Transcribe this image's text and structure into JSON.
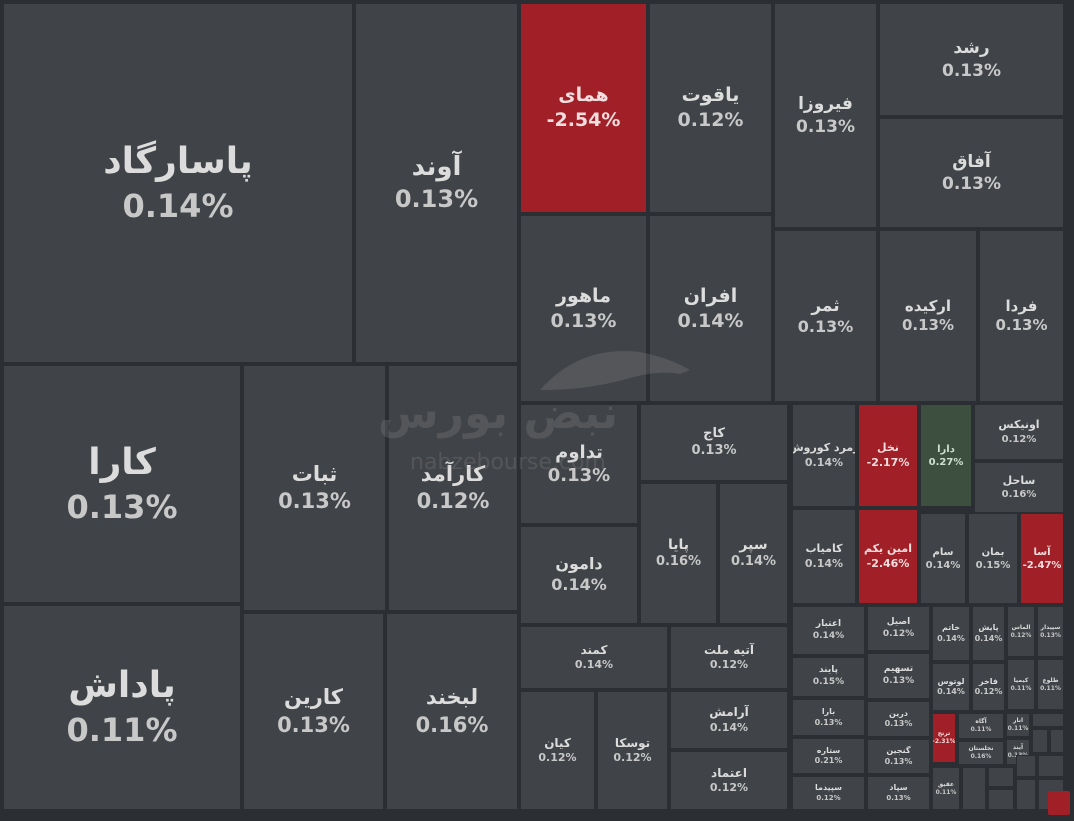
{
  "chart_data": {
    "type": "treemap",
    "tiles": [
      {
        "name": "پاسارگاد",
        "change": "0.14%",
        "direction": "up"
      },
      {
        "name": "کارا",
        "change": "0.13%",
        "direction": "up"
      },
      {
        "name": "پاداش",
        "change": "0.11%",
        "direction": "up"
      },
      {
        "name": "آوند",
        "change": "0.13%",
        "direction": "up"
      },
      {
        "name": "ثبات",
        "change": "0.13%",
        "direction": "up"
      },
      {
        "name": "کارآمد",
        "change": "0.12%",
        "direction": "up"
      },
      {
        "name": "کارین",
        "change": "0.13%",
        "direction": "up"
      },
      {
        "name": "لبخند",
        "change": "0.16%",
        "direction": "up"
      },
      {
        "name": "همای",
        "change": "-2.54%",
        "direction": "down"
      },
      {
        "name": "یاقوت",
        "change": "0.12%",
        "direction": "up"
      },
      {
        "name": "فیروزا",
        "change": "0.13%",
        "direction": "up"
      },
      {
        "name": "رشد",
        "change": "0.13%",
        "direction": "up"
      },
      {
        "name": "آفاق",
        "change": "0.13%",
        "direction": "up"
      },
      {
        "name": "ماهور",
        "change": "0.13%",
        "direction": "up"
      },
      {
        "name": "افران",
        "change": "0.14%",
        "direction": "up"
      },
      {
        "name": "ثمر",
        "change": "0.13%",
        "direction": "up"
      },
      {
        "name": "ارکیده",
        "change": "0.13%",
        "direction": "up"
      },
      {
        "name": "فردا",
        "change": "0.13%",
        "direction": "up"
      },
      {
        "name": "تداوم",
        "change": "0.13%",
        "direction": "up"
      },
      {
        "name": "دامون",
        "change": "0.14%",
        "direction": "up"
      },
      {
        "name": "کاج",
        "change": "0.13%",
        "direction": "up"
      },
      {
        "name": "پایا",
        "change": "0.16%",
        "direction": "up"
      },
      {
        "name": "سپر",
        "change": "0.14%",
        "direction": "up"
      },
      {
        "name": "زمرد کوروش",
        "change": "0.14%",
        "direction": "up"
      },
      {
        "name": "نخل",
        "change": "-2.17%",
        "direction": "down"
      },
      {
        "name": "دارا",
        "change": "0.27%",
        "direction": "up"
      },
      {
        "name": "اونیکس",
        "change": "0.12%",
        "direction": "up"
      },
      {
        "name": "ساحل",
        "change": "0.16%",
        "direction": "up"
      },
      {
        "name": "کامیاب",
        "change": "0.14%",
        "direction": "up"
      },
      {
        "name": "امین یکم",
        "change": "-2.46%",
        "direction": "down"
      },
      {
        "name": "سام",
        "change": "0.14%",
        "direction": "up"
      },
      {
        "name": "بمان",
        "change": "0.15%",
        "direction": "up"
      },
      {
        "name": "آسا",
        "change": "-2.47%",
        "direction": "down"
      },
      {
        "name": "کمند",
        "change": "0.14%",
        "direction": "up"
      },
      {
        "name": "آتیه ملت",
        "change": "0.12%",
        "direction": "up"
      },
      {
        "name": "آرامش",
        "change": "0.14%",
        "direction": "up"
      },
      {
        "name": "کیان",
        "change": "0.12%",
        "direction": "up"
      },
      {
        "name": "توسکا",
        "change": "0.12%",
        "direction": "up"
      },
      {
        "name": "اعتماد",
        "change": "0.12%",
        "direction": "up"
      },
      {
        "name": "اعتبار",
        "change": "0.14%",
        "direction": "up"
      },
      {
        "name": "اصیل",
        "change": "0.12%",
        "direction": "up"
      },
      {
        "name": "پایند",
        "change": "0.15%",
        "direction": "up"
      },
      {
        "name": "تسهیم",
        "change": "0.13%",
        "direction": "up"
      },
      {
        "name": "بارا",
        "change": "0.13%",
        "direction": "up"
      },
      {
        "name": "درین",
        "change": "0.13%",
        "direction": "up"
      },
      {
        "name": "ستاره",
        "change": "0.21%",
        "direction": "up"
      },
      {
        "name": "گنجین",
        "change": "0.13%",
        "direction": "up"
      },
      {
        "name": "سپیدما",
        "change": "0.12%",
        "direction": "up"
      },
      {
        "name": "سپاد",
        "change": "0.13%",
        "direction": "up"
      },
      {
        "name": "خاتم",
        "change": "0.14%",
        "direction": "up"
      },
      {
        "name": "پایش",
        "change": "0.14%",
        "direction": "up"
      },
      {
        "name": "الماس",
        "change": "0.12%",
        "direction": "up"
      },
      {
        "name": "سپیدار",
        "change": "0.13%",
        "direction": "up"
      },
      {
        "name": "لوتوس",
        "change": "0.14%",
        "direction": "up"
      },
      {
        "name": "فاخر",
        "change": "0.12%",
        "direction": "up"
      },
      {
        "name": "کیمیا",
        "change": "0.11%",
        "direction": "up"
      },
      {
        "name": "طلوع",
        "change": "0.11%",
        "direction": "up"
      },
      {
        "name": "ترنج",
        "change": "-2.31%",
        "direction": "down"
      },
      {
        "name": "آگاه",
        "change": "0.11%",
        "direction": "up"
      },
      {
        "name": "انار",
        "change": "0.11%",
        "direction": "up"
      },
      {
        "name": "نخلستان",
        "change": "0.16%",
        "direction": "up"
      },
      {
        "name": "آیند",
        "change": "0.13%",
        "direction": "up"
      },
      {
        "name": "عقیق",
        "change": "0.11%",
        "direction": "up"
      }
    ]
  },
  "watermark": {
    "name": "نبض بورس",
    "url": "nabzebourse.com"
  },
  "colors": {
    "background": "#2b2e33",
    "neutral": "#404347",
    "down": "#a12027",
    "up": "#3d5040",
    "text": "#dcdcdc"
  }
}
